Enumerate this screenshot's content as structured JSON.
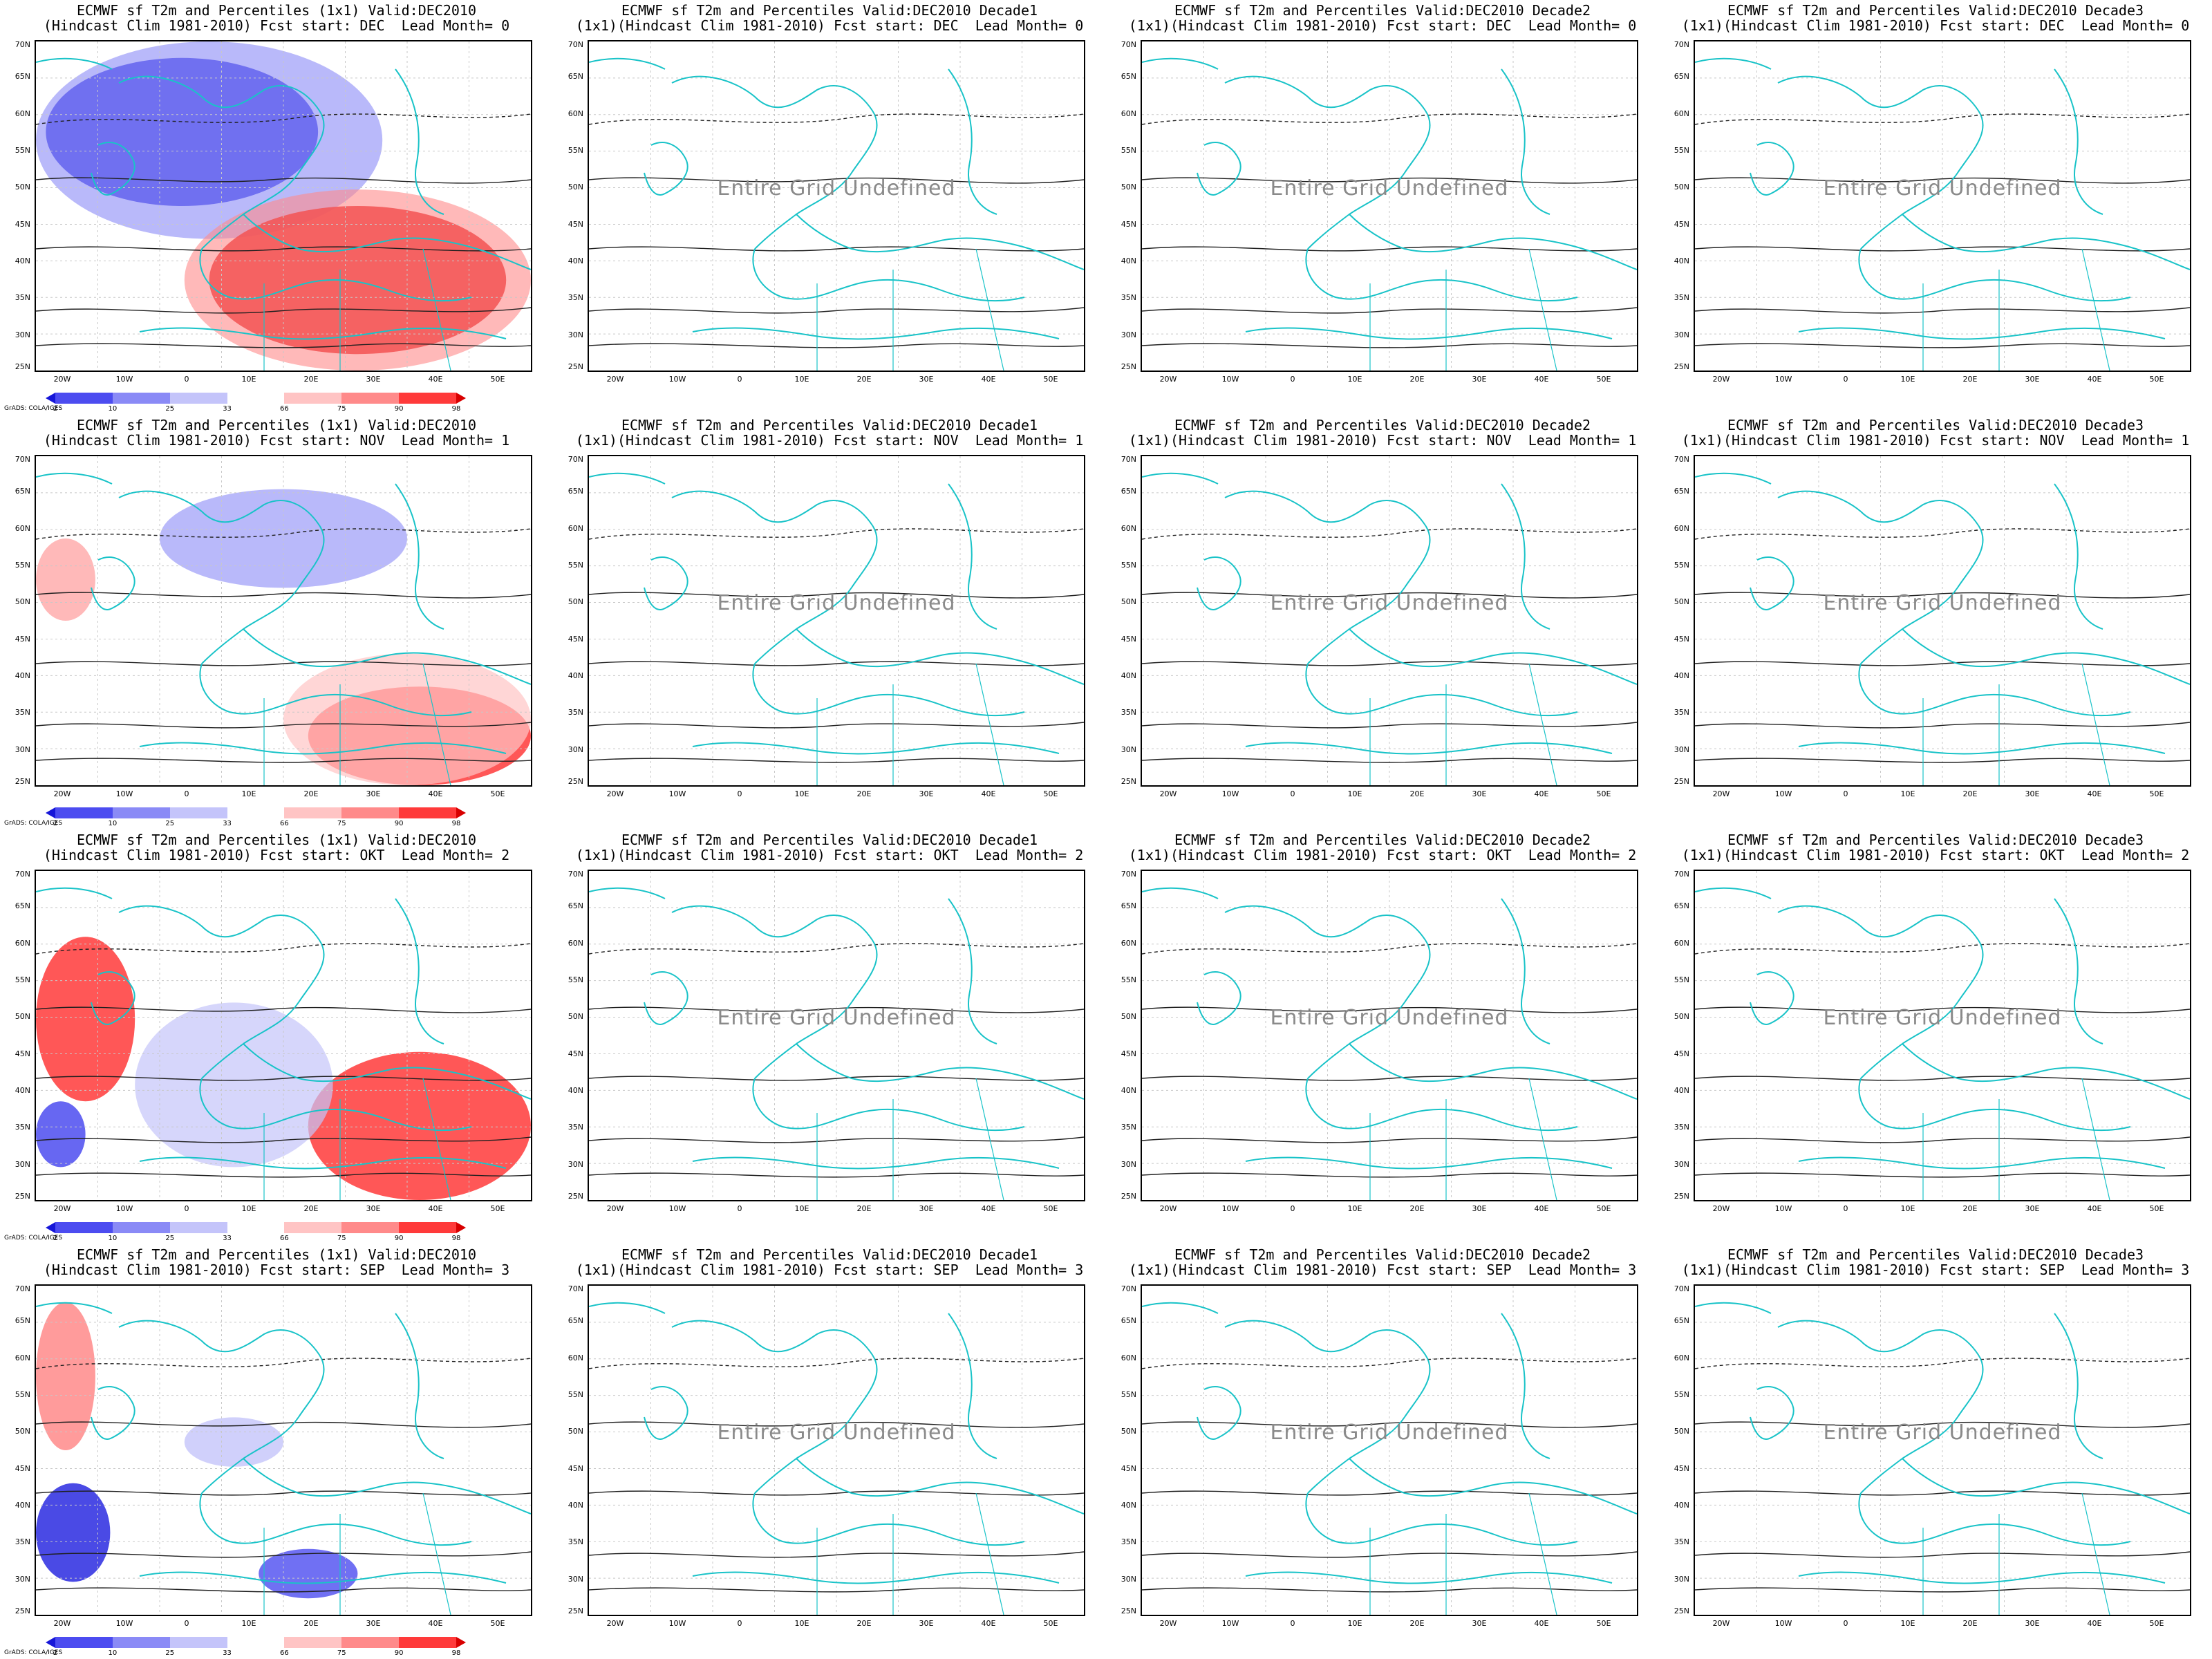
{
  "axes": {
    "lat_labels": [
      "70N",
      "65N",
      "60N",
      "55N",
      "50N",
      "45N",
      "40N",
      "35N",
      "30N",
      "25N"
    ],
    "lon_labels": [
      "20W",
      "10W",
      "0",
      "10E",
      "20E",
      "30E",
      "40E",
      "50E"
    ]
  },
  "colorbar": {
    "levels": [
      "2",
      "10",
      "25",
      "33",
      "66",
      "75",
      "90",
      "98"
    ],
    "colors": [
      "#1616d8",
      "#4c4cf0",
      "#8a8af6",
      "#c4c4fa",
      "#ffffff",
      "#ffc4c4",
      "#ff8a8a",
      "#ff3a3a",
      "#d80000"
    ]
  },
  "undefined_text": "Entire Grid Undefined",
  "credit": "GrADS: COLA/IGES",
  "rows": [
    {
      "col0": {
        "title1": "ECMWF sf T2m and Percentiles (1x1) Valid:DEC2010",
        "title2": "(Hindcast Clim 1981-2010) Fcst start: DEC  Lead Month= 0"
      },
      "decades": [
        {
          "title1": "ECMWF sf T2m and Percentiles Valid:DEC2010 Decade1",
          "title2": "(1x1)(Hindcast Clim 1981-2010) Fcst start: DEC  Lead Month= 0"
        },
        {
          "title1": "ECMWF sf T2m and Percentiles Valid:DEC2010 Decade2",
          "title2": "(1x1)(Hindcast Clim 1981-2010) Fcst start: DEC  Lead Month= 0"
        },
        {
          "title1": "ECMWF sf T2m and Percentiles Valid:DEC2010 Decade3",
          "title2": "(1x1)(Hindcast Clim 1981-2010) Fcst start: DEC  Lead Month= 0"
        }
      ]
    },
    {
      "col0": {
        "title1": "ECMWF sf T2m and Percentiles (1x1) Valid:DEC2010",
        "title2": "(Hindcast Clim 1981-2010) Fcst start: NOV  Lead Month= 1"
      },
      "decades": [
        {
          "title1": "ECMWF sf T2m and Percentiles Valid:DEC2010 Decade1",
          "title2": "(1x1)(Hindcast Clim 1981-2010) Fcst start: NOV  Lead Month= 1"
        },
        {
          "title1": "ECMWF sf T2m and Percentiles Valid:DEC2010 Decade2",
          "title2": "(1x1)(Hindcast Clim 1981-2010) Fcst start: NOV  Lead Month= 1"
        },
        {
          "title1": "ECMWF sf T2m and Percentiles Valid:DEC2010 Decade3",
          "title2": "(1x1)(Hindcast Clim 1981-2010) Fcst start: NOV  Lead Month= 1"
        }
      ]
    },
    {
      "col0": {
        "title1": "ECMWF sf T2m and Percentiles (1x1) Valid:DEC2010",
        "title2": "(Hindcast Clim 1981-2010) Fcst start: OKT  Lead Month= 2"
      },
      "decades": [
        {
          "title1": "ECMWF sf T2m and Percentiles Valid:DEC2010 Decade1",
          "title2": "(1x1)(Hindcast Clim 1981-2010) Fcst start: OKT  Lead Month= 2"
        },
        {
          "title1": "ECMWF sf T2m and Percentiles Valid:DEC2010 Decade2",
          "title2": "(1x1)(Hindcast Clim 1981-2010) Fcst start: OKT  Lead Month= 2"
        },
        {
          "title1": "ECMWF sf T2m and Percentiles Valid:DEC2010 Decade3",
          "title2": "(1x1)(Hindcast Clim 1981-2010) Fcst start: OKT  Lead Month= 2"
        }
      ]
    },
    {
      "col0": {
        "title1": "ECMWF sf T2m and Percentiles (1x1) Valid:DEC2010",
        "title2": "(Hindcast Clim 1981-2010) Fcst start: SEP  Lead Month= 3"
      },
      "decades": [
        {
          "title1": "ECMWF sf T2m and Percentiles Valid:DEC2010 Decade1",
          "title2": "(1x1)(Hindcast Clim 1981-2010) Fcst start: SEP  Lead Month= 3"
        },
        {
          "title1": "ECMWF sf T2m and Percentiles Valid:DEC2010 Decade2",
          "title2": "(1x1)(Hindcast Clim 1981-2010) Fcst start: SEP  Lead Month= 3"
        },
        {
          "title1": "ECMWF sf T2m and Percentiles Valid:DEC2010 Decade3",
          "title2": "(1x1)(Hindcast Clim 1981-2010) Fcst start: SEP  Lead Month= 3"
        }
      ]
    }
  ]
}
